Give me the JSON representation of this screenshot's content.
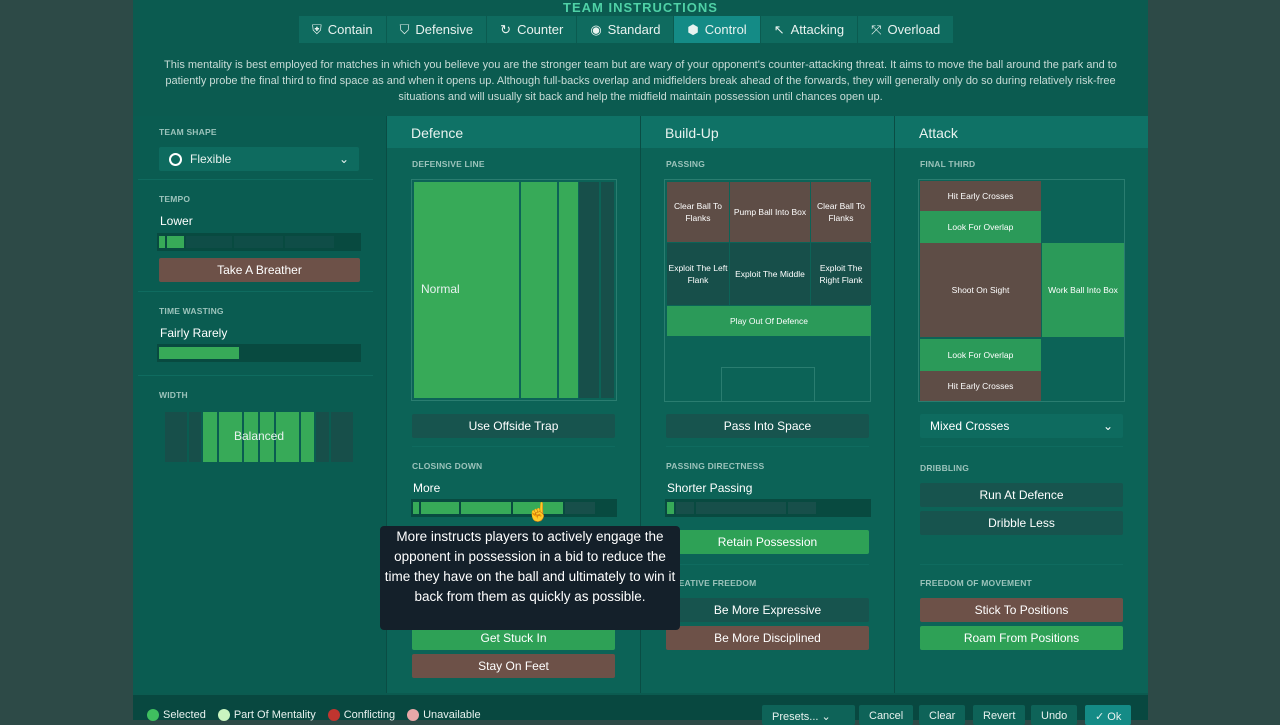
{
  "title": "TEAM INSTRUCTIONS",
  "tabs": [
    {
      "label": "Contain",
      "icon": "shield-heart-icon"
    },
    {
      "label": "Defensive",
      "icon": "shield-icon"
    },
    {
      "label": "Counter",
      "icon": "counter-icon"
    },
    {
      "label": "Standard",
      "icon": "standard-icon"
    },
    {
      "label": "Control",
      "icon": "control-icon",
      "active": true
    },
    {
      "label": "Attacking",
      "icon": "attacking-icon"
    },
    {
      "label": "Overload",
      "icon": "overload-icon"
    }
  ],
  "description": "This mentality is best employed for matches in which you believe you are the stronger team but are wary of your opponent's counter-attacking threat. It aims to move the ball around the park and to patiently probe the final third to find space as and when it opens up. Although full-backs overlap and midfielders break ahead of the forwards, they will generally only do so during relatively risk-free situations and will usually sit back and help the midfield maintain possession until chances open up.",
  "sidebar": {
    "team_shape_label": "TEAM SHAPE",
    "team_shape": "Flexible",
    "tempo_label": "TEMPO",
    "tempo": "Lower",
    "tempo_level": 2,
    "take_breather": "Take A Breather",
    "time_wasting_label": "TIME WASTING",
    "time_wasting": "Fairly Rarely",
    "time_wasting_level": 0.4,
    "width_label": "WIDTH",
    "width": "Balanced"
  },
  "defence": {
    "header": "Defence",
    "defensive_line_label": "DEFENSIVE LINE",
    "defensive_line": "Normal",
    "offside_trap": "Use Offside Trap",
    "closing_down_label": "CLOSING DOWN",
    "closing_down": "More",
    "closing_down_level": 4,
    "get_stuck_in": "Get Stuck In",
    "stay_on_feet": "Stay On Feet"
  },
  "tooltip": "More instructs players to actively engage the opponent in possession in a bid to reduce the time they have on the ball and ultimately to win it back from them as quickly as possible.",
  "buildup": {
    "header": "Build-Up",
    "passing_label": "PASSING",
    "zones": {
      "clear_left": "Clear Ball To Flanks",
      "pump": "Pump Ball Into Box",
      "clear_right": "Clear Ball To Flanks",
      "exploit_left": "Exploit The Left Flank",
      "exploit_middle": "Exploit The Middle",
      "exploit_right": "Exploit The Right Flank",
      "play_out": "Play Out Of Defence"
    },
    "pass_into_space": "Pass Into Space",
    "directness_label": "PASSING DIRECTNESS",
    "directness": "Shorter Passing",
    "directness_level": 1,
    "retain_possession": "Retain Possession",
    "creative_label": "CREATIVE FREEDOM",
    "be_more_expressive": "Be More Expressive",
    "be_more_disciplined": "Be More Disciplined"
  },
  "attack": {
    "header": "Attack",
    "final_third_label": "FINAL THIRD",
    "zones": {
      "hit_early_top": "Hit Early Crosses",
      "overlap_top": "Look For Overlap",
      "shoot": "Shoot On Sight",
      "work_ball": "Work Ball Into Box",
      "overlap_bottom": "Look For Overlap",
      "hit_early_bottom": "Hit Early Crosses"
    },
    "crosses": "Mixed Crosses",
    "dribbling_label": "DRIBBLING",
    "run_at_defence": "Run At Defence",
    "dribble_less": "Dribble Less",
    "freedom_label": "FREEDOM OF MOVEMENT",
    "stick_to_positions": "Stick To Positions",
    "roam_from_positions": "Roam From Positions"
  },
  "legend": [
    {
      "label": "Selected",
      "color": "#3fbf5f"
    },
    {
      "label": "Part Of Mentality",
      "color": "#c9f5c0"
    },
    {
      "label": "Conflicting",
      "color": "#c0352f"
    },
    {
      "label": "Unavailable",
      "color": "#e8a8a8"
    }
  ],
  "footer": {
    "presets": "Presets...",
    "cancel": "Cancel",
    "clear": "Clear",
    "revert": "Revert",
    "undo": "Undo",
    "ok": "Ok"
  }
}
